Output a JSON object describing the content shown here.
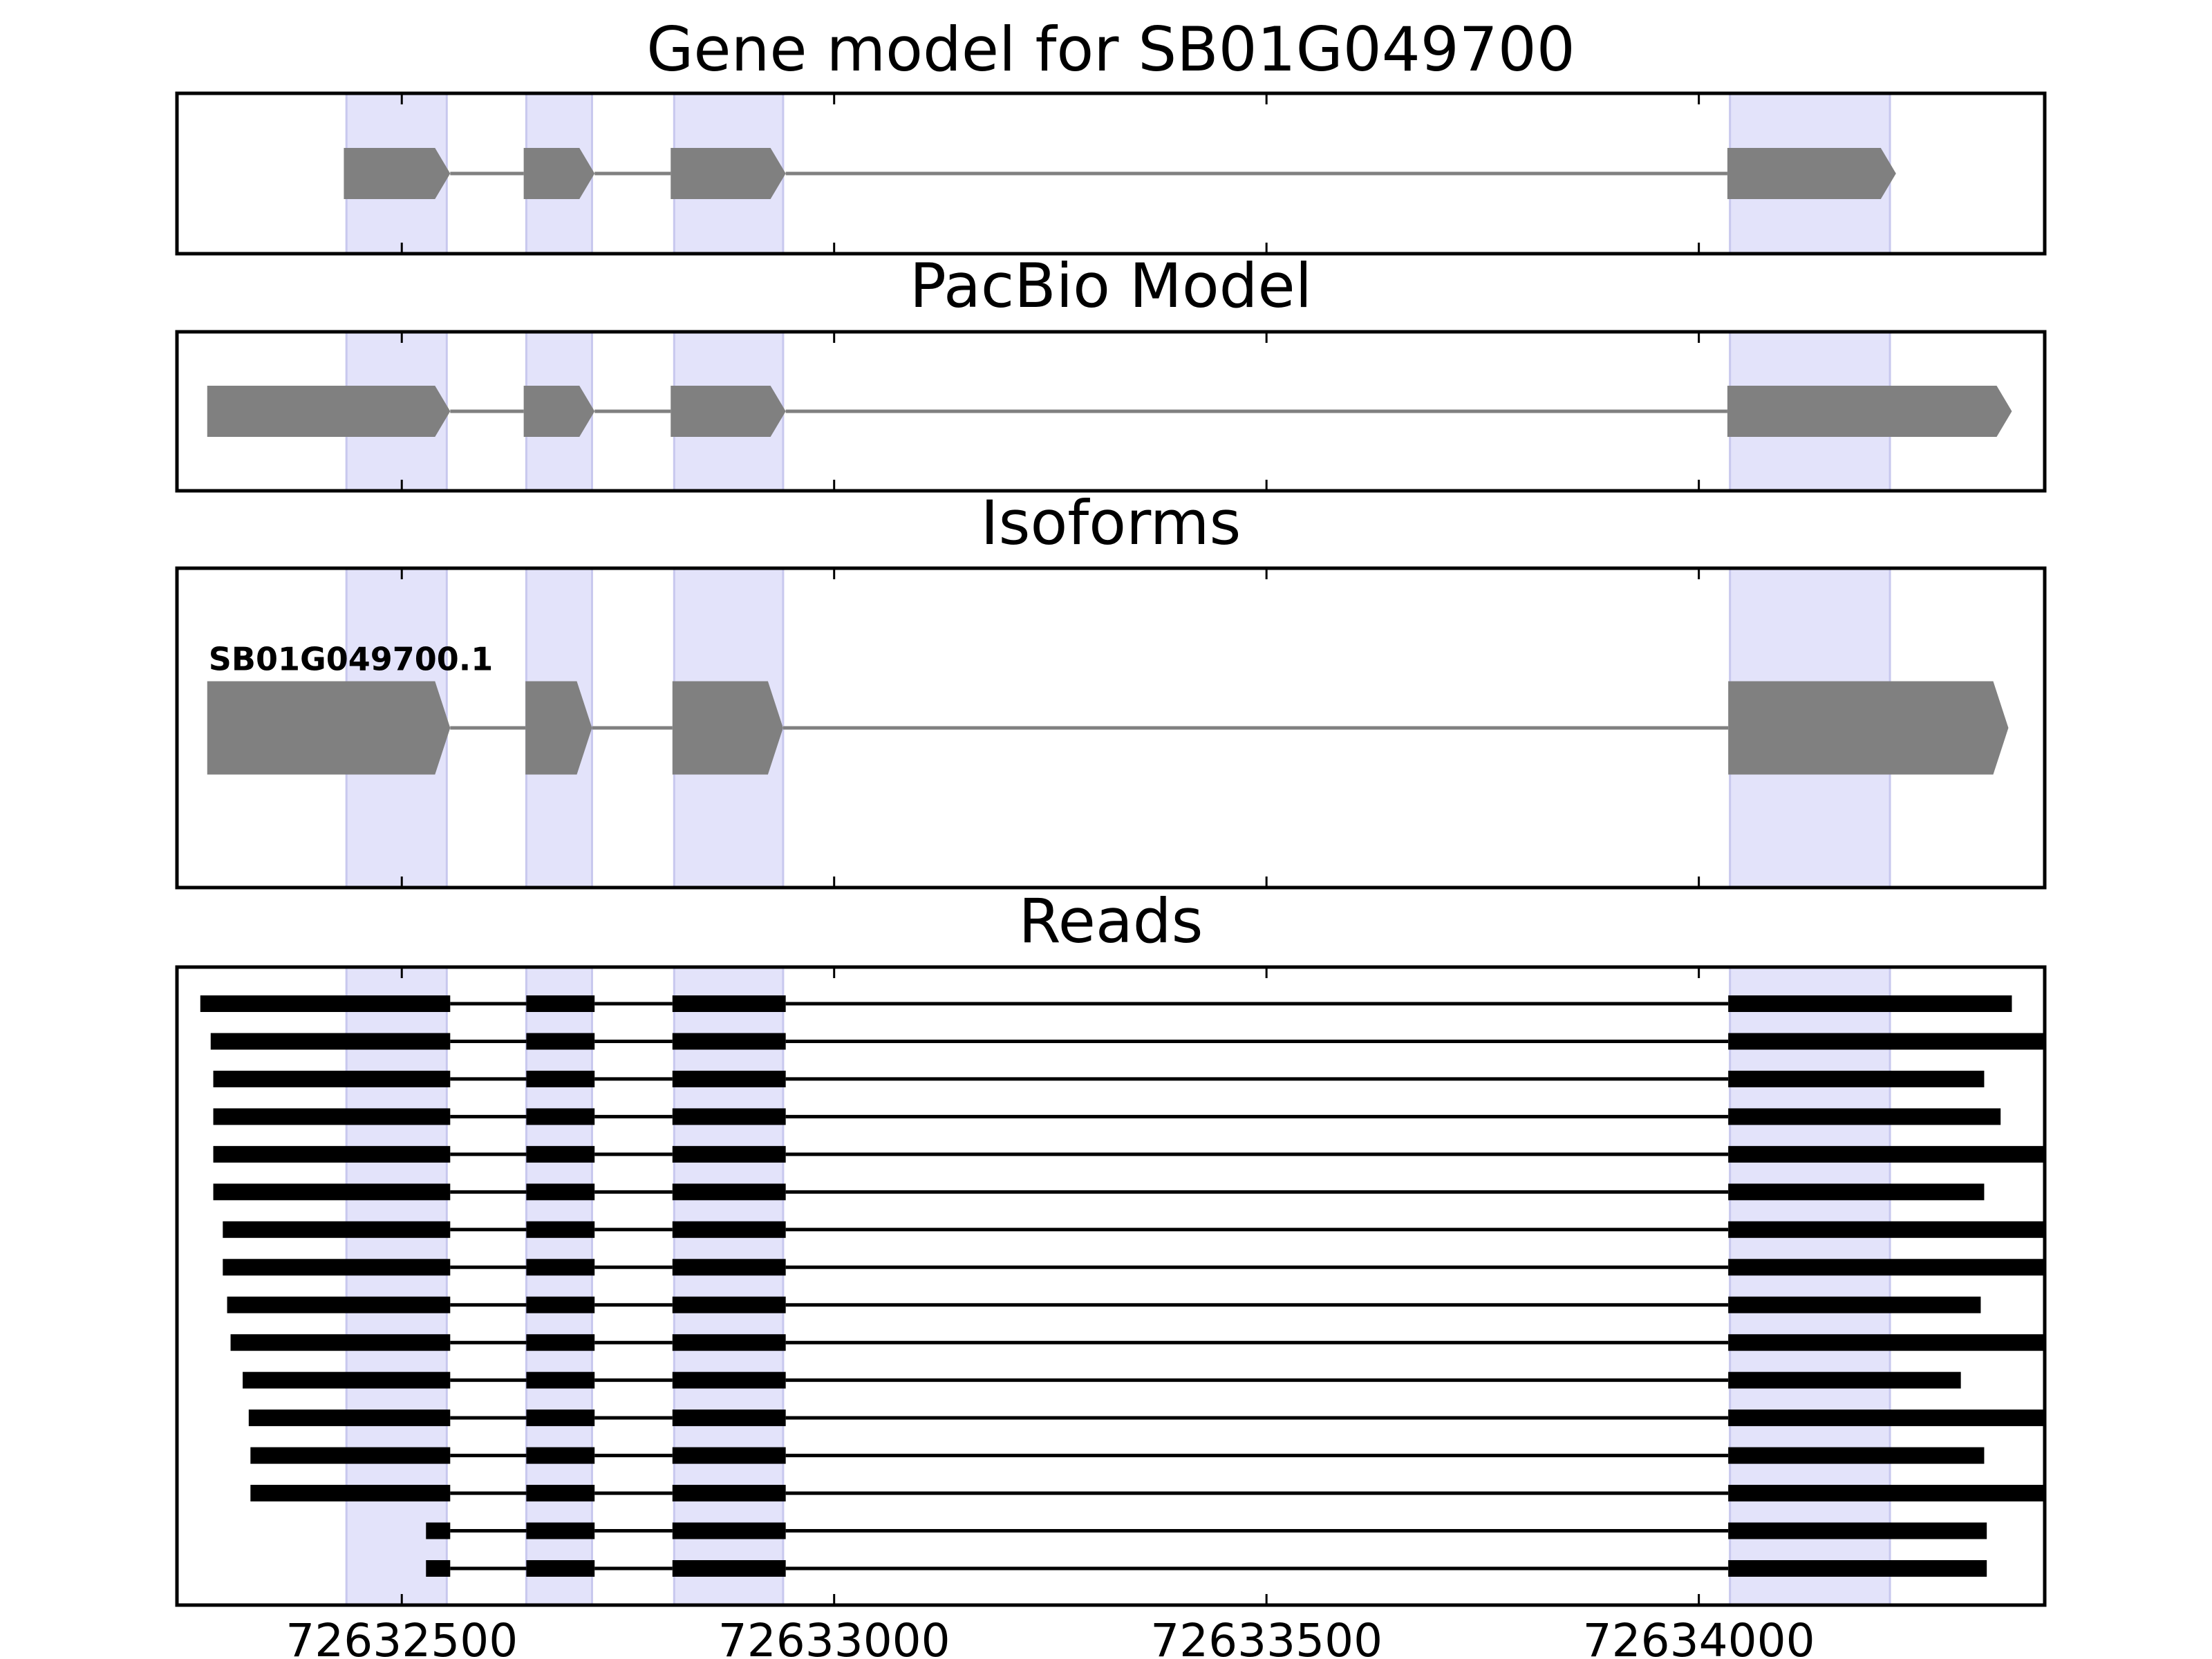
{
  "chart_data": {
    "type": "gene-tracks",
    "xlim": [
      72632240,
      72634400
    ],
    "xticks": [
      72632500,
      72633000,
      72633500,
      72634000
    ],
    "highlight_color": "#e3e3fa",
    "highlights": [
      [
        72632436,
        72632552
      ],
      [
        72632644,
        72632720
      ],
      [
        72632815,
        72632941
      ],
      [
        72634036,
        72634221
      ]
    ],
    "panels": [
      {
        "title": "Gene model for SB01G049700",
        "shape": "arrow",
        "color": "#808080",
        "features": [
          {
            "blocks": [
              [
                72632433,
                72632556
              ],
              [
                72632641,
                72632723
              ],
              [
                72632811,
                72632944
              ],
              [
                72634033,
                72634228
              ]
            ]
          }
        ]
      },
      {
        "title": "PacBio Model",
        "shape": "arrow",
        "color": "#808080",
        "features": [
          {
            "blocks": [
              [
                72632275,
                72632556
              ],
              [
                72632641,
                72632723
              ],
              [
                72632811,
                72632944
              ],
              [
                72634033,
                72634362
              ]
            ]
          }
        ]
      },
      {
        "title": "Isoforms",
        "shape": "arrow",
        "color": "#808080",
        "features": [
          {
            "name": "SB01G049700.1",
            "blocks": [
              [
                72632275,
                72632556
              ],
              [
                72632643,
                72632720
              ],
              [
                72632813,
                72632941
              ],
              [
                72634034,
                72634358
              ]
            ]
          }
        ]
      },
      {
        "title": "Reads",
        "shape": "bar",
        "color": "#000000",
        "features": [
          {
            "blocks": [
              [
                72632267,
                72632556
              ],
              [
                72632644,
                72632723
              ],
              [
                72632813,
                72632944
              ],
              [
                72634034,
                72634362
              ]
            ]
          },
          {
            "blocks": [
              [
                72632279,
                72632556
              ],
              [
                72632644,
                72632723
              ],
              [
                72632813,
                72632944
              ],
              [
                72634034,
                72634400
              ]
            ]
          },
          {
            "blocks": [
              [
                72632282,
                72632556
              ],
              [
                72632644,
                72632723
              ],
              [
                72632813,
                72632944
              ],
              [
                72634034,
                72634330
              ]
            ]
          },
          {
            "blocks": [
              [
                72632282,
                72632556
              ],
              [
                72632644,
                72632723
              ],
              [
                72632813,
                72632944
              ],
              [
                72634034,
                72634349
              ]
            ]
          },
          {
            "blocks": [
              [
                72632282,
                72632556
              ],
              [
                72632644,
                72632723
              ],
              [
                72632813,
                72632944
              ],
              [
                72634034,
                72634400
              ]
            ]
          },
          {
            "blocks": [
              [
                72632282,
                72632556
              ],
              [
                72632644,
                72632723
              ],
              [
                72632813,
                72632944
              ],
              [
                72634034,
                72634330
              ]
            ]
          },
          {
            "blocks": [
              [
                72632293,
                72632556
              ],
              [
                72632644,
                72632723
              ],
              [
                72632813,
                72632944
              ],
              [
                72634034,
                72634400
              ]
            ]
          },
          {
            "blocks": [
              [
                72632293,
                72632556
              ],
              [
                72632644,
                72632723
              ],
              [
                72632813,
                72632944
              ],
              [
                72634034,
                72634400
              ]
            ]
          },
          {
            "blocks": [
              [
                72632298,
                72632556
              ],
              [
                72632644,
                72632723
              ],
              [
                72632813,
                72632944
              ],
              [
                72634034,
                72634326
              ]
            ]
          },
          {
            "blocks": [
              [
                72632302,
                72632556
              ],
              [
                72632644,
                72632723
              ],
              [
                72632813,
                72632944
              ],
              [
                72634034,
                72634400
              ]
            ]
          },
          {
            "blocks": [
              [
                72632316,
                72632556
              ],
              [
                72632644,
                72632723
              ],
              [
                72632813,
                72632944
              ],
              [
                72634034,
                72634303
              ]
            ]
          },
          {
            "blocks": [
              [
                72632323,
                72632556
              ],
              [
                72632644,
                72632723
              ],
              [
                72632813,
                72632944
              ],
              [
                72634034,
                72634400
              ]
            ]
          },
          {
            "blocks": [
              [
                72632325,
                72632556
              ],
              [
                72632644,
                72632723
              ],
              [
                72632813,
                72632944
              ],
              [
                72634034,
                72634330
              ]
            ]
          },
          {
            "blocks": [
              [
                72632325,
                72632556
              ],
              [
                72632644,
                72632723
              ],
              [
                72632813,
                72632944
              ],
              [
                72634034,
                72634400
              ]
            ]
          },
          {
            "blocks": [
              [
                72632528,
                72632556
              ],
              [
                72632644,
                72632723
              ],
              [
                72632813,
                72632944
              ],
              [
                72634034,
                72634333
              ]
            ]
          },
          {
            "blocks": [
              [
                72632528,
                72632556
              ],
              [
                72632644,
                72632723
              ],
              [
                72632813,
                72632944
              ],
              [
                72634034,
                72634333
              ]
            ]
          }
        ]
      }
    ]
  }
}
